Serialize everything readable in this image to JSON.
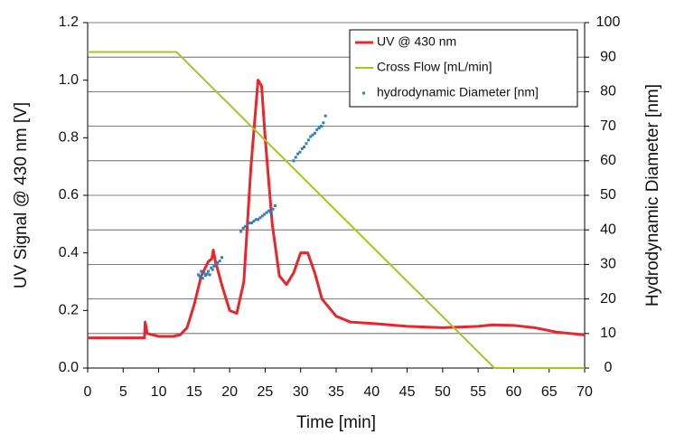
{
  "chart_data": {
    "type": "line",
    "xlabel": "Time [min]",
    "ylabel": "UV Signal @ 430 nm [V]",
    "y2label": "Hydrodynamic Diameter [nm]",
    "xlim": [
      0,
      70
    ],
    "xticks": [
      0,
      5,
      10,
      15,
      20,
      25,
      30,
      35,
      40,
      45,
      50,
      55,
      60,
      65,
      70
    ],
    "ylim": [
      0,
      1.2
    ],
    "yticks": [
      {
        "value": 0,
        "label": "0.0"
      },
      0.2,
      0.4,
      0.6,
      0.8,
      {
        "value": 1,
        "label": "1.0"
      },
      1.2
    ],
    "y2lim": [
      0,
      100
    ],
    "y2ticks": [
      0,
      10,
      20,
      30,
      40,
      50,
      60,
      70,
      80,
      90,
      100
    ],
    "grid": true,
    "legend": "upper right",
    "series": [
      {
        "name": "UV @ 430 nm",
        "color": "#e8262b",
        "type": "line",
        "x": [
          0,
          8,
          8.1,
          8.4,
          10,
          12,
          13,
          14,
          15,
          16,
          17,
          17.5,
          17.7,
          18,
          19,
          20,
          21,
          22,
          23,
          24,
          24.5,
          25,
          26,
          27,
          28,
          29,
          30,
          31,
          32,
          33,
          35,
          37,
          40,
          45,
          50,
          55,
          57,
          60,
          63,
          66,
          70
        ],
        "values": [
          0.105,
          0.105,
          0.16,
          0.12,
          0.11,
          0.11,
          0.115,
          0.14,
          0.22,
          0.32,
          0.37,
          0.38,
          0.41,
          0.37,
          0.28,
          0.2,
          0.19,
          0.3,
          0.7,
          1.0,
          0.98,
          0.8,
          0.5,
          0.32,
          0.29,
          0.33,
          0.4,
          0.4,
          0.33,
          0.24,
          0.18,
          0.16,
          0.155,
          0.145,
          0.14,
          0.145,
          0.15,
          0.148,
          0.14,
          0.125,
          0.115
        ]
      },
      {
        "name": "Cross Flow [mL/min]",
        "color": "#a8c61c",
        "type": "line",
        "axis": "y2",
        "x": [
          0,
          12.5,
          57.3,
          70
        ],
        "values": [
          91.5,
          91.5,
          0,
          0
        ]
      },
      {
        "name": "hydrodynamic Diameter [nm]",
        "color": "#2f7fc1",
        "type": "scatter",
        "axis": "y2",
        "x": [
          15.6,
          15.8,
          16.0,
          16.2,
          16.4,
          16.6,
          16.8,
          17.0,
          17.2,
          17.4,
          17.6,
          17.8,
          18.0,
          18.3,
          18.6,
          18.9,
          21.6,
          21.9,
          22.2,
          22.5,
          22.8,
          23.1,
          23.4,
          23.7,
          24.0,
          24.3,
          24.6,
          24.9,
          25.2,
          25.5,
          25.8,
          26.1,
          26.4,
          29.0,
          29.3,
          29.6,
          29.9,
          30.2,
          30.5,
          30.8,
          31.1,
          31.4,
          31.7,
          32.0,
          32.3,
          32.6,
          32.9,
          33.2,
          33.5
        ],
        "values": [
          27,
          26.5,
          28,
          26,
          27.5,
          26.8,
          27.2,
          28,
          27,
          29,
          28.5,
          29.5,
          30,
          30.5,
          31,
          32,
          39.5,
          40.5,
          41,
          41.5,
          42,
          42,
          42.5,
          43,
          43,
          43.5,
          44,
          44.5,
          45,
          45.5,
          45,
          46,
          47,
          60,
          61,
          62,
          62.5,
          63.5,
          64,
          65,
          66,
          67,
          67.5,
          68,
          69,
          69.5,
          70,
          71,
          73
        ]
      }
    ]
  }
}
